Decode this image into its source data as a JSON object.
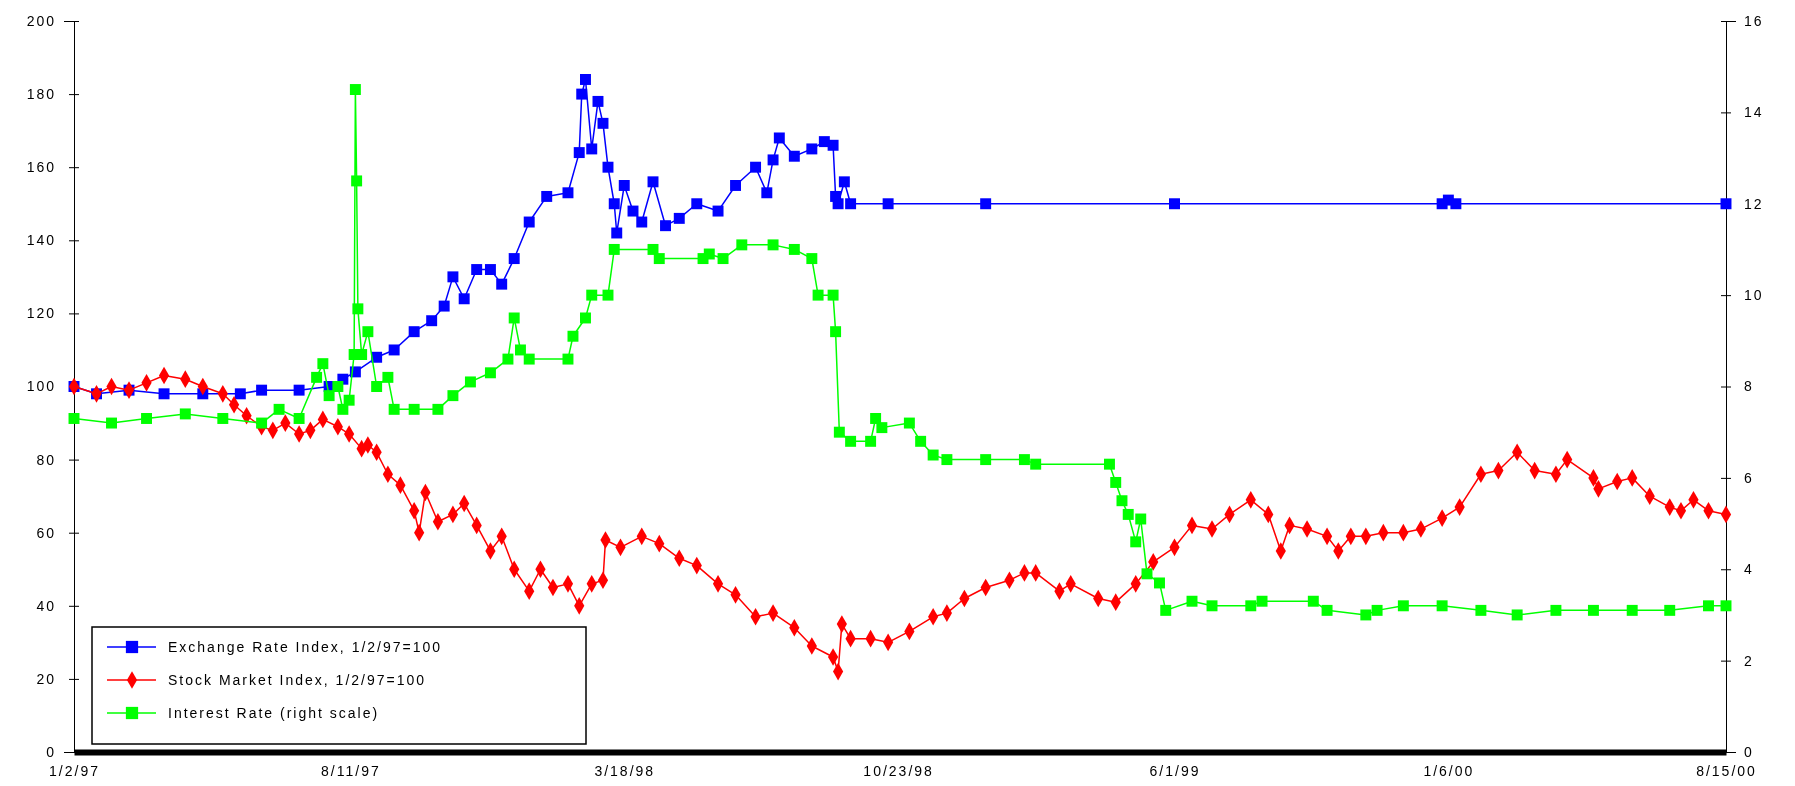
{
  "chart_data": {
    "type": "line",
    "xlim": [
      "1997-01-02",
      "2000-08-15"
    ],
    "xticks": [
      {
        "value": "1997-01-02",
        "label": "1/2/97"
      },
      {
        "value": "1997-08-11",
        "label": "8/11/97"
      },
      {
        "value": "1998-03-18",
        "label": "3/18/98"
      },
      {
        "value": "1998-10-23",
        "label": "10/23/98"
      },
      {
        "value": "1999-06-01",
        "label": "6/1/99"
      },
      {
        "value": "2000-01-06",
        "label": "1/6/00"
      },
      {
        "value": "2000-08-15",
        "label": "8/15/00"
      }
    ],
    "ylim": [
      0,
      200
    ],
    "yticks": [
      0,
      20,
      40,
      60,
      80,
      100,
      120,
      140,
      160,
      180,
      200
    ],
    "y2lim": [
      0,
      16
    ],
    "y2ticks": [
      0,
      2,
      4,
      6,
      8,
      10,
      12,
      14,
      16
    ],
    "grid": false,
    "legend": "bottom left",
    "series": [
      {
        "name": "Exchange Rate Index, 1/2/97=100",
        "color": "#0000ff",
        "marker": "square",
        "x": [
          "1997-01-02",
          "1997-01-20",
          "1997-02-15",
          "1997-03-15",
          "1997-04-15",
          "1997-05-15",
          "1997-06-01",
          "1997-07-01",
          "1997-07-25",
          "1997-08-05",
          "1997-08-15",
          "1997-09-01",
          "1997-09-15",
          "1997-10-01",
          "1997-10-15",
          "1997-10-25",
          "1997-11-01",
          "1997-11-10",
          "1997-11-20",
          "1997-12-01",
          "1997-12-10",
          "1997-12-20",
          "1998-01-01",
          "1998-01-15",
          "1998-02-01",
          "1998-02-10",
          "1998-02-12",
          "1998-02-15",
          "1998-02-20",
          "1998-02-25",
          "1998-03-01",
          "1998-03-05",
          "1998-03-10",
          "1998-03-12",
          "1998-03-18",
          "1998-03-25",
          "1998-04-01",
          "1998-04-10",
          "1998-04-20",
          "1998-05-01",
          "1998-05-15",
          "1998-06-01",
          "1998-06-15",
          "1998-07-01",
          "1998-07-10",
          "1998-07-15",
          "1998-07-20",
          "1998-08-01",
          "1998-08-15",
          "1998-08-25",
          "1998-09-01",
          "1998-09-03",
          "1998-09-05",
          "1998-09-10",
          "1998-09-15",
          "1998-10-15",
          "1999-01-01",
          "1999-06-01",
          "2000-01-01",
          "2000-01-06",
          "2000-01-12",
          "2000-08-15"
        ],
        "values": [
          100,
          98,
          99,
          98,
          98,
          98,
          99,
          99,
          100,
          102,
          104,
          108,
          110,
          115,
          118,
          122,
          130,
          124,
          132,
          132,
          128,
          135,
          145,
          152,
          153,
          164,
          180,
          184,
          165,
          178,
          172,
          160,
          150,
          142,
          155,
          148,
          145,
          156,
          144,
          146,
          150,
          148,
          155,
          160,
          153,
          162,
          168,
          163,
          165,
          167,
          166,
          152,
          150,
          156,
          150,
          150,
          150,
          150,
          150,
          151,
          150,
          150
        ]
      },
      {
        "name": "Stock Market Index, 1/2/97=100",
        "color": "#ff0000",
        "marker": "diamond",
        "x": [
          "1997-01-02",
          "1997-01-20",
          "1997-02-01",
          "1997-02-15",
          "1997-03-01",
          "1997-03-15",
          "1997-04-01",
          "1997-04-15",
          "1997-05-01",
          "1997-05-10",
          "1997-05-20",
          "1997-06-01",
          "1997-06-10",
          "1997-06-20",
          "1997-07-01",
          "1997-07-10",
          "1997-07-20",
          "1997-08-01",
          "1997-08-10",
          "1997-08-20",
          "1997-08-25",
          "1997-09-01",
          "1997-09-10",
          "1997-09-20",
          "1997-10-01",
          "1997-10-05",
          "1997-10-10",
          "1997-10-20",
          "1997-11-01",
          "1997-11-10",
          "1997-11-20",
          "1997-12-01",
          "1997-12-10",
          "1997-12-20",
          "1998-01-01",
          "1998-01-10",
          "1998-01-20",
          "1998-02-01",
          "1998-02-10",
          "1998-02-20",
          "1998-03-01",
          "1998-03-03",
          "1998-03-15",
          "1998-04-01",
          "1998-04-15",
          "1998-05-01",
          "1998-05-15",
          "1998-06-01",
          "1998-06-15",
          "1998-07-01",
          "1998-07-15",
          "1998-08-01",
          "1998-08-15",
          "1998-09-01",
          "1998-09-05",
          "1998-09-08",
          "1998-09-15",
          "1998-10-01",
          "1998-10-15",
          "1998-11-01",
          "1998-11-20",
          "1998-12-01",
          "1998-12-15",
          "1999-01-01",
          "1999-01-20",
          "1999-02-01",
          "1999-02-10",
          "1999-03-01",
          "1999-03-10",
          "1999-04-01",
          "1999-04-15",
          "1999-05-01",
          "1999-05-15",
          "1999-06-01",
          "1999-06-15",
          "1999-07-01",
          "1999-07-15",
          "1999-08-01",
          "1999-08-15",
          "1999-08-25",
          "1999-09-01",
          "1999-09-15",
          "1999-10-01",
          "1999-10-10",
          "1999-10-20",
          "1999-11-01",
          "1999-11-15",
          "1999-12-01",
          "1999-12-15",
          "2000-01-01",
          "2000-01-15",
          "2000-02-01",
          "2000-02-15",
          "2000-03-01",
          "2000-03-15",
          "2000-04-01",
          "2000-04-10",
          "2000-05-01",
          "2000-05-05",
          "2000-05-20",
          "2000-06-01",
          "2000-06-15",
          "2000-07-01",
          "2000-07-10",
          "2000-07-20",
          "2000-08-01",
          "2000-08-15"
        ],
        "values": [
          100,
          98,
          100,
          99,
          101,
          103,
          102,
          100,
          98,
          95,
          92,
          89,
          88,
          90,
          87,
          88,
          91,
          89,
          87,
          83,
          84,
          82,
          76,
          73,
          66,
          60,
          71,
          63,
          65,
          68,
          62,
          55,
          59,
          50,
          44,
          50,
          45,
          46,
          40,
          46,
          47,
          58,
          56,
          59,
          57,
          53,
          51,
          46,
          43,
          37,
          38,
          34,
          29,
          26,
          22,
          35,
          31,
          31,
          30,
          33,
          37,
          38,
          42,
          45,
          47,
          49,
          49,
          44,
          46,
          42,
          41,
          46,
          52,
          56,
          62,
          61,
          65,
          69,
          65,
          55,
          62,
          61,
          59,
          55,
          59,
          59,
          60,
          60,
          61,
          64,
          67,
          76,
          77,
          82,
          77,
          76,
          80,
          75,
          72,
          74,
          75,
          70,
          67,
          66,
          69,
          66,
          65
        ]
      },
      {
        "name": "Interest Rate (right scale)",
        "color": "#00ff00",
        "marker": "square",
        "axis": "y2",
        "x": [
          "1997-01-02",
          "1997-02-01",
          "1997-03-01",
          "1997-04-01",
          "1997-05-01",
          "1997-06-01",
          "1997-06-15",
          "1997-07-01",
          "1997-07-15",
          "1997-07-20",
          "1997-07-25",
          "1997-08-01",
          "1997-08-05",
          "1997-08-10",
          "1997-08-14",
          "1997-08-15",
          "1997-08-16",
          "1997-08-17",
          "1997-08-20",
          "1997-08-25",
          "1997-09-01",
          "1997-09-10",
          "1997-09-15",
          "1997-10-01",
          "1997-10-20",
          "1997-11-01",
          "1997-11-15",
          "1997-12-01",
          "1997-12-15",
          "1997-12-20",
          "1997-12-25",
          "1998-01-01",
          "1998-02-01",
          "1998-02-05",
          "1998-02-15",
          "1998-02-20",
          "1998-03-05",
          "1998-03-10",
          "1998-04-10",
          "1998-04-15",
          "1998-05-20",
          "1998-05-25",
          "1998-06-05",
          "1998-06-20",
          "1998-07-15",
          "1998-08-01",
          "1998-08-15",
          "1998-08-20",
          "1998-09-01",
          "1998-09-03",
          "1998-09-06",
          "1998-09-15",
          "1998-10-01",
          "1998-10-05",
          "1998-10-10",
          "1998-11-01",
          "1998-11-10",
          "1998-11-20",
          "1998-12-01",
          "1999-01-01",
          "1999-02-01",
          "1999-02-10",
          "1999-04-10",
          "1999-04-15",
          "1999-04-20",
          "1999-04-25",
          "1999-05-01",
          "1999-05-05",
          "1999-05-10",
          "1999-05-20",
          "1999-05-25",
          "1999-06-15",
          "1999-07-01",
          "1999-08-01",
          "1999-08-10",
          "1999-09-20",
          "1999-10-01",
          "1999-11-01",
          "1999-11-10",
          "1999-12-01",
          "2000-01-01",
          "2000-02-01",
          "2000-03-01",
          "2000-04-01",
          "2000-05-01",
          "2000-06-01",
          "2000-07-01",
          "2000-08-01",
          "2000-08-15"
        ],
        "values": [
          7.3,
          7.2,
          7.3,
          7.4,
          7.3,
          7.2,
          7.5,
          7.3,
          8.2,
          8.5,
          7.8,
          8.0,
          7.5,
          7.7,
          8.7,
          14.5,
          12.5,
          9.7,
          8.7,
          9.2,
          8.0,
          8.2,
          7.5,
          7.5,
          7.5,
          7.8,
          8.1,
          8.3,
          8.6,
          9.5,
          8.8,
          8.6,
          8.6,
          9.1,
          9.5,
          10.0,
          10.0,
          11.0,
          11.0,
          10.8,
          10.8,
          10.9,
          10.8,
          11.1,
          11.1,
          11.0,
          10.8,
          10.0,
          10.0,
          9.2,
          7.0,
          6.8,
          6.8,
          7.3,
          7.1,
          7.2,
          6.8,
          6.5,
          6.4,
          6.4,
          6.4,
          6.3,
          6.3,
          5.9,
          5.5,
          5.2,
          4.6,
          5.1,
          3.9,
          3.7,
          3.1,
          3.3,
          3.2,
          3.2,
          3.3,
          3.3,
          3.1,
          3.0,
          3.1,
          3.2,
          3.2,
          3.1,
          3.0,
          3.1,
          3.1,
          3.1,
          3.1,
          3.2,
          3.2
        ]
      }
    ]
  }
}
